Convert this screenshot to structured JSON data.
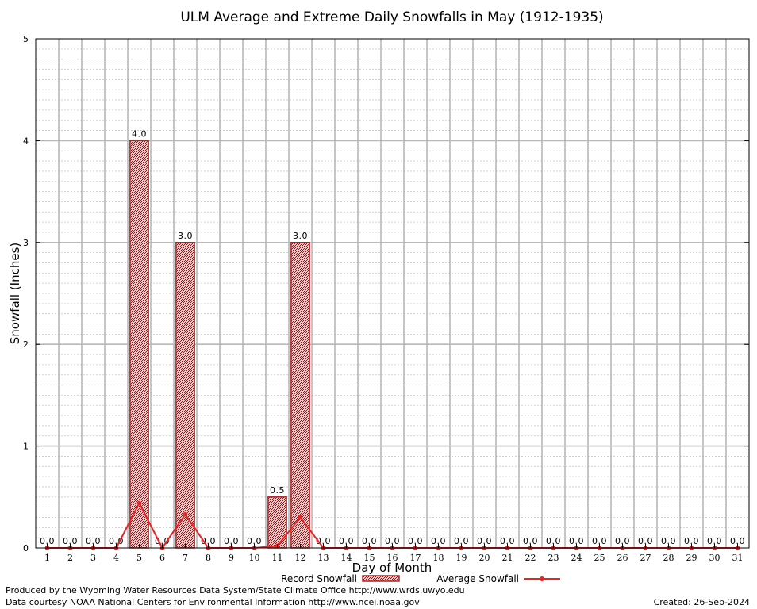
{
  "chart_data": {
    "type": "bar",
    "title": "ULM Average and Extreme Daily Snowfalls in May (1912-1935)",
    "xlabel": "Day of Month",
    "ylabel": "Snowfall (Inches)",
    "ylim": [
      0,
      5
    ],
    "yticks": [
      "0",
      "1",
      "2",
      "3",
      "4",
      "5"
    ],
    "categories": [
      "1",
      "2",
      "3",
      "4",
      "5",
      "6",
      "7",
      "8",
      "9",
      "10",
      "11",
      "12",
      "13",
      "14",
      "15",
      "16",
      "17",
      "18",
      "19",
      "20",
      "21",
      "22",
      "23",
      "24",
      "25",
      "26",
      "27",
      "28",
      "29",
      "30",
      "31"
    ],
    "series": [
      {
        "name": "Record Snowfall",
        "kind": "bar",
        "color": "#b22222",
        "values": [
          0.0,
          0.0,
          0.0,
          0.0,
          4.0,
          0.0,
          3.0,
          0.0,
          0.0,
          0.0,
          0.5,
          3.0,
          0.0,
          0.0,
          0.0,
          0.0,
          0.0,
          0.0,
          0.0,
          0.0,
          0.0,
          0.0,
          0.0,
          0.0,
          0.0,
          0.0,
          0.0,
          0.0,
          0.0,
          0.0,
          0.0
        ],
        "labels": [
          "0.0",
          "0.0",
          "0.0",
          "0.0",
          "4.0",
          "0.0",
          "3.0",
          "0.0",
          "0.0",
          "0.0",
          "0.5",
          "3.0",
          "0.0",
          "0.0",
          "0.0",
          "0.0",
          "0.0",
          "0.0",
          "0.0",
          "0.0",
          "0.0",
          "0.0",
          "0.0",
          "0.0",
          "0.0",
          "0.0",
          "0.0",
          "0.0",
          "0.0",
          "0.0",
          "0.0"
        ]
      },
      {
        "name": "Average Snowfall",
        "kind": "line",
        "color": "#ee2222",
        "values": [
          0,
          0,
          0,
          0,
          0.44,
          0,
          0.33,
          0,
          0,
          0,
          0.02,
          0.3,
          0,
          0,
          0,
          0,
          0,
          0,
          0,
          0,
          0,
          0,
          0,
          0,
          0,
          0,
          0,
          0,
          0,
          0,
          0
        ]
      }
    ],
    "grid": true,
    "legend": "bottom-center"
  },
  "footer": {
    "produced_by": "Produced by the Wyoming Water Resources Data System/State Climate Office http://www.wrds.uwyo.edu",
    "data_courtesy": "Data courtesy NOAA National Centers for Environmental Information http://www.ncei.noaa.gov",
    "created": "Created: 26-Sep-2024"
  }
}
